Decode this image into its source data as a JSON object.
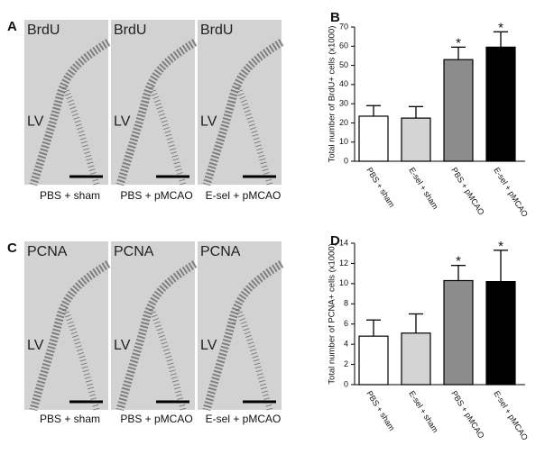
{
  "figure": {
    "micrographs": [
      {
        "panel_label": "A",
        "stain": "BrdU",
        "region_label": "LV",
        "captions": [
          "PBS + sham",
          "PBS + pMCAO",
          "E-sel + pMCAO"
        ]
      },
      {
        "panel_label": "C",
        "stain": "PCNA",
        "region_label": "LV",
        "captions": [
          "PBS + sham",
          "PBS + pMCAO",
          "E-sel + pMCAO"
        ]
      }
    ]
  },
  "chart_data": [
    {
      "type": "bar",
      "panel_label": "B",
      "y_label": "Total number of BrdU+ cells (x1000)",
      "categories": [
        "PBS + sham",
        "E-sel + sham",
        "PBS + pMCAO",
        "E-sel + pMCAO"
      ],
      "values": [
        23.5,
        22.5,
        53,
        59.5
      ],
      "errors": [
        5.5,
        6,
        6.5,
        8
      ],
      "colors": [
        "#ffffff",
        "#d4d4d4",
        "#8c8c8c",
        "#000000"
      ],
      "significance_labels": [
        null,
        null,
        "*",
        "*"
      ],
      "ylim": [
        0,
        70
      ],
      "yticks": [
        0,
        10,
        20,
        30,
        40,
        50,
        60,
        70
      ]
    },
    {
      "type": "bar",
      "panel_label": "D",
      "y_label": "Total number of PCNA+ cells (x1000)",
      "categories": [
        "PBS + sham",
        "E-sel + sham",
        "PBS + pMCAO",
        "E-sel + pMCAO"
      ],
      "values": [
        4.8,
        5.1,
        10.3,
        10.2
      ],
      "errors": [
        1.6,
        1.9,
        1.5,
        3.1
      ],
      "colors": [
        "#ffffff",
        "#d4d4d4",
        "#8c8c8c",
        "#000000"
      ],
      "significance_labels": [
        null,
        null,
        "*",
        "*"
      ],
      "ylim": [
        0,
        14
      ],
      "yticks": [
        0,
        2,
        4,
        6,
        8,
        10,
        12,
        14
      ]
    }
  ]
}
